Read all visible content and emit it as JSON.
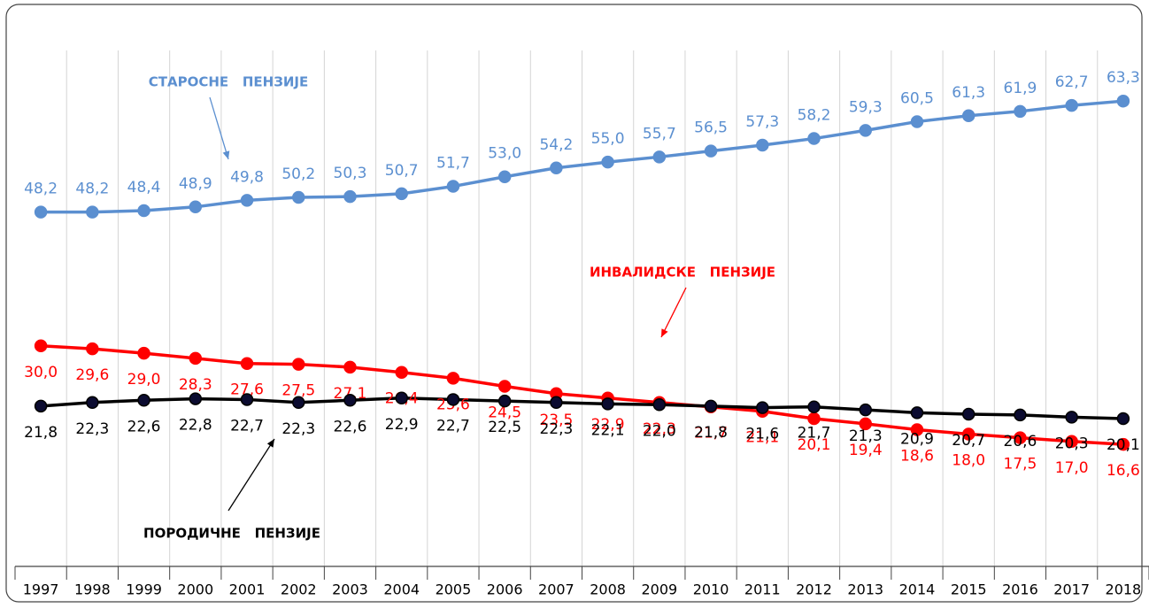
{
  "chart_data": {
    "type": "line",
    "categories": [
      "1997",
      "1998",
      "1999",
      "2000",
      "2001",
      "2002",
      "2003",
      "2004",
      "2005",
      "2006",
      "2007",
      "2008",
      "2009",
      "2010",
      "2011",
      "2012",
      "2013",
      "2014",
      "2015",
      "2016",
      "2017",
      "2018"
    ],
    "ylim": [
      0,
      75
    ],
    "grid": true,
    "series": [
      {
        "name": "СТАРОСНЕ   ПЕНЗИЈЕ",
        "color": "#5b8fd0",
        "values": [
          48.2,
          48.2,
          48.4,
          48.9,
          49.8,
          50.2,
          50.3,
          50.7,
          51.7,
          53.0,
          54.2,
          55.0,
          55.7,
          56.5,
          57.3,
          58.2,
          59.3,
          60.5,
          61.3,
          61.9,
          62.7,
          63.3
        ],
        "value_labels": [
          "48,2",
          "48,2",
          "48,4",
          "48,9",
          "49,8",
          "50,2",
          "50,3",
          "50,7",
          "51,7",
          "53,0",
          "54,2",
          "55,0",
          "55,7",
          "56,5",
          "57,3",
          "58,2",
          "59,3",
          "60,5",
          "61,3",
          "61,9",
          "62,7",
          "63,3"
        ]
      },
      {
        "name": "ИНВАЛИДСКЕ   ПЕНЗИЈЕ",
        "color": "#ff0000",
        "values": [
          30.0,
          29.6,
          29.0,
          28.3,
          27.6,
          27.5,
          27.1,
          26.4,
          25.6,
          24.5,
          23.5,
          22.9,
          22.3,
          21.7,
          21.1,
          20.1,
          19.4,
          18.6,
          18.0,
          17.5,
          17.0,
          16.6
        ],
        "value_labels": [
          "30,0",
          "29,6",
          "29,0",
          "28,3",
          "27,6",
          "27,5",
          "27,1",
          "26,4",
          "25,6",
          "24,5",
          "23,5",
          "22,9",
          "22,3",
          "21,7",
          "21,1",
          "20,1",
          "19,4",
          "18,6",
          "18,0",
          "17,5",
          "17,0",
          "16,6"
        ]
      },
      {
        "name": "ПОРОДИЧНЕ   ПЕНЗИЈЕ",
        "color": "#000000",
        "values": [
          21.8,
          22.3,
          22.6,
          22.8,
          22.7,
          22.3,
          22.6,
          22.9,
          22.7,
          22.5,
          22.3,
          22.1,
          22.0,
          21.8,
          21.6,
          21.7,
          21.3,
          20.9,
          20.7,
          20.6,
          20.3,
          20.1
        ],
        "value_labels": [
          "21,8",
          "22,3",
          "22,6",
          "22,8",
          "22,7",
          "22,3",
          "22,6",
          "22,9",
          "22,7",
          "22,5",
          "22,3",
          "22,1",
          "22,0",
          "21,8",
          "21,6",
          "21,7",
          "21,3",
          "20,9",
          "20,7",
          "20,6",
          "20,3",
          "20,1"
        ]
      }
    ]
  }
}
